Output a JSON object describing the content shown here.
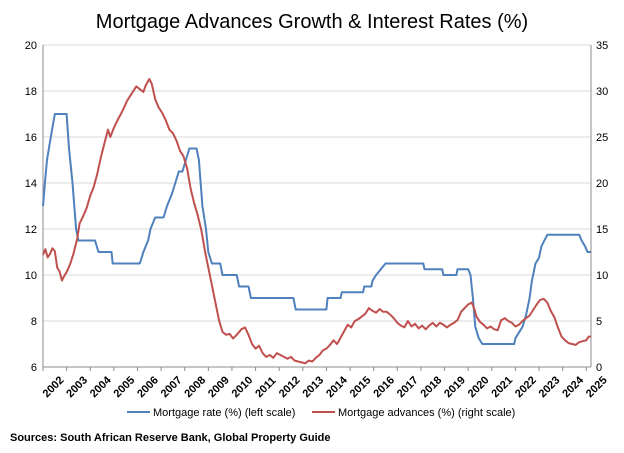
{
  "chart_data": {
    "type": "line",
    "title": "Mortgage Advances Growth & Interest Rates (%)",
    "source": "Sources: South African Reserve Bank, Global Property Guide",
    "x_tick_labels": [
      "2002",
      "2003",
      "2004",
      "2005",
      "2006",
      "2007",
      "2008",
      "2009",
      "2010",
      "2011",
      "2012",
      "2013",
      "2014",
      "2015",
      "2016",
      "2017",
      "2018",
      "2019",
      "2020",
      "2021",
      "2022",
      "2023",
      "2024",
      "2025"
    ],
    "xlim": [
      2002,
      2025.2
    ],
    "y_left": {
      "ticks": [
        "6",
        "8",
        "10",
        "12",
        "14",
        "16",
        "18",
        "20"
      ],
      "ylim": [
        6,
        20
      ]
    },
    "y_right": {
      "ticks": [
        "0",
        "5",
        "10",
        "15",
        "20",
        "25",
        "30",
        "35"
      ],
      "ylim": [
        0,
        35
      ]
    },
    "grid": "horizontal",
    "legend_position": "bottom",
    "series": [
      {
        "name": "Mortgage rate (%) (left scale)",
        "axis": "left",
        "color": "#4f81bd",
        "points": [
          [
            2002.0,
            13.0
          ],
          [
            2002.08,
            14.0
          ],
          [
            2002.17,
            15.0
          ],
          [
            2002.33,
            16.0
          ],
          [
            2002.5,
            17.0
          ],
          [
            2002.58,
            17.0
          ],
          [
            2003.0,
            17.0
          ],
          [
            2003.1,
            15.5
          ],
          [
            2003.25,
            14.0
          ],
          [
            2003.4,
            12.0
          ],
          [
            2003.5,
            11.5
          ],
          [
            2004.2,
            11.5
          ],
          [
            2004.35,
            11.0
          ],
          [
            2004.9,
            11.0
          ],
          [
            2004.95,
            10.5
          ],
          [
            2006.1,
            10.5
          ],
          [
            2006.25,
            11.0
          ],
          [
            2006.45,
            11.5
          ],
          [
            2006.55,
            12.0
          ],
          [
            2006.75,
            12.5
          ],
          [
            2007.1,
            12.5
          ],
          [
            2007.25,
            13.0
          ],
          [
            2007.45,
            13.5
          ],
          [
            2007.6,
            14.0
          ],
          [
            2007.75,
            14.5
          ],
          [
            2007.9,
            14.5
          ],
          [
            2008.05,
            15.0
          ],
          [
            2008.2,
            15.5
          ],
          [
            2008.5,
            15.5
          ],
          [
            2008.6,
            15.0
          ],
          [
            2008.75,
            13.0
          ],
          [
            2008.9,
            12.0
          ],
          [
            2009.0,
            11.0
          ],
          [
            2009.15,
            10.5
          ],
          [
            2009.5,
            10.5
          ],
          [
            2009.6,
            10.0
          ],
          [
            2010.2,
            10.0
          ],
          [
            2010.3,
            9.5
          ],
          [
            2010.7,
            9.5
          ],
          [
            2010.8,
            9.0
          ],
          [
            2012.6,
            9.0
          ],
          [
            2012.7,
            8.5
          ],
          [
            2014.0,
            8.5
          ],
          [
            2014.05,
            9.0
          ],
          [
            2014.6,
            9.0
          ],
          [
            2014.65,
            9.25
          ],
          [
            2015.55,
            9.25
          ],
          [
            2015.6,
            9.5
          ],
          [
            2015.9,
            9.5
          ],
          [
            2015.95,
            9.75
          ],
          [
            2016.1,
            10.0
          ],
          [
            2016.3,
            10.25
          ],
          [
            2016.5,
            10.5
          ],
          [
            2018.1,
            10.5
          ],
          [
            2018.15,
            10.25
          ],
          [
            2018.9,
            10.25
          ],
          [
            2018.95,
            10.0
          ],
          [
            2019.5,
            10.0
          ],
          [
            2019.55,
            10.25
          ],
          [
            2020.0,
            10.25
          ],
          [
            2020.1,
            10.0
          ],
          [
            2020.2,
            9.0
          ],
          [
            2020.3,
            7.75
          ],
          [
            2020.45,
            7.25
          ],
          [
            2020.6,
            7.0
          ],
          [
            2021.95,
            7.0
          ],
          [
            2022.0,
            7.25
          ],
          [
            2022.3,
            7.75
          ],
          [
            2022.45,
            8.25
          ],
          [
            2022.6,
            9.0
          ],
          [
            2022.7,
            9.75
          ],
          [
            2022.85,
            10.5
          ],
          [
            2023.0,
            10.75
          ],
          [
            2023.1,
            11.25
          ],
          [
            2023.35,
            11.75
          ],
          [
            2024.7,
            11.75
          ],
          [
            2024.8,
            11.5
          ],
          [
            2024.95,
            11.25
          ],
          [
            2025.05,
            11.0
          ],
          [
            2025.2,
            11.0
          ]
        ]
      },
      {
        "name": "Mortgage advances (%) (right scale)",
        "axis": "right",
        "color": "#c0504d",
        "points": [
          [
            2002.0,
            12.2
          ],
          [
            2002.1,
            12.8
          ],
          [
            2002.2,
            11.9
          ],
          [
            2002.3,
            12.3
          ],
          [
            2002.4,
            12.9
          ],
          [
            2002.5,
            12.6
          ],
          [
            2002.6,
            10.8
          ],
          [
            2002.7,
            10.4
          ],
          [
            2002.8,
            9.4
          ],
          [
            2002.9,
            9.9
          ],
          [
            2003.0,
            10.3
          ],
          [
            2003.15,
            11.2
          ],
          [
            2003.3,
            12.4
          ],
          [
            2003.45,
            14.0
          ],
          [
            2003.55,
            15.6
          ],
          [
            2003.7,
            16.4
          ],
          [
            2003.85,
            17.3
          ],
          [
            2004.0,
            18.6
          ],
          [
            2004.15,
            19.6
          ],
          [
            2004.3,
            21.0
          ],
          [
            2004.45,
            22.8
          ],
          [
            2004.6,
            24.3
          ],
          [
            2004.75,
            25.8
          ],
          [
            2004.85,
            25.0
          ],
          [
            2005.0,
            26.0
          ],
          [
            2005.15,
            26.8
          ],
          [
            2005.3,
            27.5
          ],
          [
            2005.45,
            28.3
          ],
          [
            2005.55,
            28.9
          ],
          [
            2005.65,
            29.3
          ],
          [
            2005.8,
            29.9
          ],
          [
            2005.95,
            30.5
          ],
          [
            2006.1,
            30.2
          ],
          [
            2006.25,
            29.9
          ],
          [
            2006.35,
            30.6
          ],
          [
            2006.5,
            31.3
          ],
          [
            2006.6,
            30.8
          ],
          [
            2006.75,
            29.1
          ],
          [
            2006.9,
            28.2
          ],
          [
            2007.05,
            27.6
          ],
          [
            2007.2,
            26.8
          ],
          [
            2007.35,
            25.8
          ],
          [
            2007.5,
            25.4
          ],
          [
            2007.65,
            24.6
          ],
          [
            2007.8,
            23.5
          ],
          [
            2007.95,
            22.9
          ],
          [
            2008.1,
            21.6
          ],
          [
            2008.25,
            19.4
          ],
          [
            2008.4,
            17.8
          ],
          [
            2008.55,
            16.5
          ],
          [
            2008.7,
            14.9
          ],
          [
            2008.85,
            12.7
          ],
          [
            2009.0,
            10.8
          ],
          [
            2009.15,
            8.9
          ],
          [
            2009.3,
            7.0
          ],
          [
            2009.45,
            5.1
          ],
          [
            2009.6,
            3.8
          ],
          [
            2009.75,
            3.5
          ],
          [
            2009.9,
            3.6
          ],
          [
            2010.05,
            3.1
          ],
          [
            2010.2,
            3.5
          ],
          [
            2010.4,
            4.1
          ],
          [
            2010.55,
            4.3
          ],
          [
            2010.7,
            3.5
          ],
          [
            2010.85,
            2.5
          ],
          [
            2011.0,
            2.0
          ],
          [
            2011.15,
            2.3
          ],
          [
            2011.3,
            1.5
          ],
          [
            2011.45,
            1.1
          ],
          [
            2011.6,
            1.3
          ],
          [
            2011.75,
            1.0
          ],
          [
            2011.9,
            1.5
          ],
          [
            2012.05,
            1.3
          ],
          [
            2012.2,
            1.1
          ],
          [
            2012.35,
            0.9
          ],
          [
            2012.5,
            1.1
          ],
          [
            2012.65,
            0.7
          ],
          [
            2012.8,
            0.6
          ],
          [
            2012.95,
            0.5
          ],
          [
            2013.1,
            0.4
          ],
          [
            2013.25,
            0.7
          ],
          [
            2013.4,
            0.6
          ],
          [
            2013.55,
            1.0
          ],
          [
            2013.7,
            1.3
          ],
          [
            2013.85,
            1.8
          ],
          [
            2014.0,
            2.0
          ],
          [
            2014.15,
            2.4
          ],
          [
            2014.3,
            2.9
          ],
          [
            2014.45,
            2.5
          ],
          [
            2014.6,
            3.2
          ],
          [
            2014.75,
            3.9
          ],
          [
            2014.9,
            4.6
          ],
          [
            2015.05,
            4.3
          ],
          [
            2015.2,
            5.0
          ],
          [
            2015.35,
            5.2
          ],
          [
            2015.5,
            5.5
          ],
          [
            2015.65,
            5.8
          ],
          [
            2015.8,
            6.4
          ],
          [
            2015.95,
            6.1
          ],
          [
            2016.1,
            5.9
          ],
          [
            2016.25,
            6.3
          ],
          [
            2016.4,
            6.0
          ],
          [
            2016.55,
            6.0
          ],
          [
            2016.7,
            5.7
          ],
          [
            2016.85,
            5.3
          ],
          [
            2017.0,
            4.8
          ],
          [
            2017.15,
            4.5
          ],
          [
            2017.3,
            4.3
          ],
          [
            2017.45,
            5.0
          ],
          [
            2017.6,
            4.4
          ],
          [
            2017.75,
            4.7
          ],
          [
            2017.9,
            4.2
          ],
          [
            2018.05,
            4.5
          ],
          [
            2018.2,
            4.1
          ],
          [
            2018.35,
            4.5
          ],
          [
            2018.5,
            4.8
          ],
          [
            2018.65,
            4.4
          ],
          [
            2018.8,
            4.8
          ],
          [
            2018.95,
            4.6
          ],
          [
            2019.1,
            4.3
          ],
          [
            2019.25,
            4.6
          ],
          [
            2019.4,
            4.8
          ],
          [
            2019.55,
            5.1
          ],
          [
            2019.7,
            6.0
          ],
          [
            2019.85,
            6.4
          ],
          [
            2020.0,
            6.8
          ],
          [
            2020.15,
            7.0
          ],
          [
            2020.25,
            6.4
          ],
          [
            2020.35,
            5.5
          ],
          [
            2020.5,
            4.9
          ],
          [
            2020.65,
            4.6
          ],
          [
            2020.8,
            4.2
          ],
          [
            2020.95,
            4.4
          ],
          [
            2021.1,
            4.1
          ],
          [
            2021.25,
            4.0
          ],
          [
            2021.4,
            5.1
          ],
          [
            2021.55,
            5.3
          ],
          [
            2021.7,
            5.0
          ],
          [
            2021.85,
            4.8
          ],
          [
            2022.0,
            4.4
          ],
          [
            2022.15,
            4.6
          ],
          [
            2022.3,
            5.0
          ],
          [
            2022.45,
            5.3
          ],
          [
            2022.6,
            5.6
          ],
          [
            2022.75,
            6.2
          ],
          [
            2022.9,
            6.8
          ],
          [
            2023.05,
            7.3
          ],
          [
            2023.2,
            7.4
          ],
          [
            2023.35,
            7.0
          ],
          [
            2023.5,
            6.1
          ],
          [
            2023.65,
            5.4
          ],
          [
            2023.8,
            4.3
          ],
          [
            2023.95,
            3.3
          ],
          [
            2024.1,
            2.9
          ],
          [
            2024.25,
            2.6
          ],
          [
            2024.4,
            2.5
          ],
          [
            2024.55,
            2.4
          ],
          [
            2024.7,
            2.7
          ],
          [
            2024.85,
            2.8
          ],
          [
            2025.0,
            2.9
          ],
          [
            2025.1,
            3.3
          ],
          [
            2025.2,
            3.3
          ]
        ]
      }
    ]
  }
}
